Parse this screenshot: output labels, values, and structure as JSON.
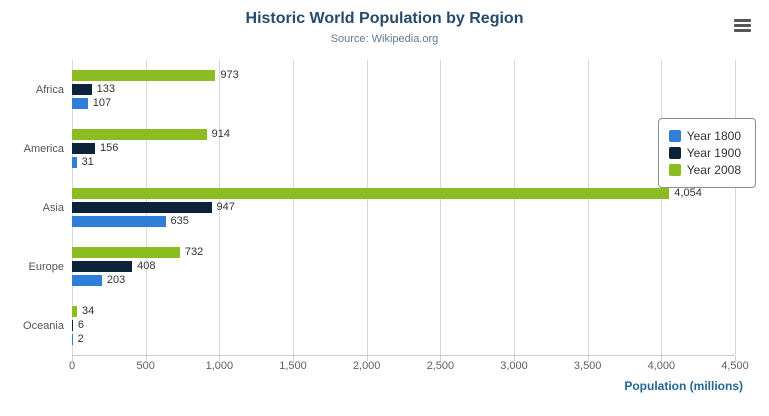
{
  "header": {
    "title": "Historic World Population by Region",
    "subtitle": "Source: Wikipedia.org"
  },
  "toolbar": {
    "context_menu_icon": "hamburger-icon"
  },
  "chart_data": {
    "type": "bar",
    "orientation": "horizontal",
    "categories": [
      "Africa",
      "America",
      "Asia",
      "Europe",
      "Oceania"
    ],
    "series": [
      {
        "name": "Year 1800",
        "color": "#2f7ed8",
        "values": [
          107,
          31,
          635,
          203,
          2
        ]
      },
      {
        "name": "Year 1900",
        "color": "#0d233a",
        "values": [
          133,
          156,
          947,
          408,
          6
        ]
      },
      {
        "name": "Year 2008",
        "color": "#8bbc21",
        "values": [
          973,
          914,
          4054,
          732,
          34
        ]
      }
    ],
    "row_order_top_to_bottom": [
      "Year 2008",
      "Year 1900",
      "Year 1800"
    ],
    "xlabel": "Population (millions)",
    "ylabel": "",
    "xlim": [
      0,
      4500
    ],
    "xticks": [
      0,
      500,
      1000,
      1500,
      2000,
      2500,
      3000,
      3500,
      4000,
      4500
    ],
    "grid": true,
    "legend": {
      "position": "right",
      "items": [
        "Year 1800",
        "Year 1900",
        "Year 2008"
      ]
    },
    "colors": {
      "title": "#274b6d",
      "subtitle": "#5f7b96",
      "axis_title": "#236794",
      "gridline": "#d8d8d8",
      "axis_line": "#c0d0e0",
      "legend_border": "#909090",
      "labels": "#333333"
    }
  }
}
